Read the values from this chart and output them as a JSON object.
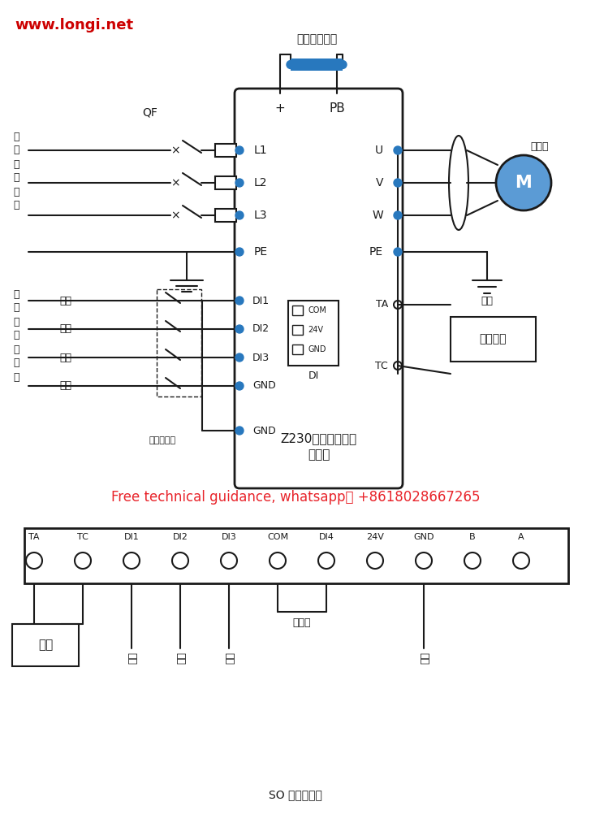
{
  "website": "www.longi.net",
  "website_color": "#cc0000",
  "line_color": "#1a1a1a",
  "blue_dot_color": "#2878be",
  "blue_fill_color": "#2878be",
  "motor_color": "#5b9bd5",
  "bg_color": "#ffffff",
  "red_text_color": "#e8232a",
  "whatsapp_text": "Free technical guidance, whatsapp： +8618028667265",
  "inverter_label1": "Z230电动葪芦专用",
  "inverter_label2": "变频器",
  "external_resistor_label": "外接制动电阶",
  "motor_label": "电动机",
  "ground_label": "接地",
  "qf_label": "QF",
  "plus_label": "+",
  "pb_label": "PB",
  "input_labels": [
    "L1",
    "L2",
    "L3",
    "PE"
  ],
  "output_labels": [
    "U",
    "V",
    "W",
    "PE"
  ],
  "di_labels": [
    "DI1",
    "DI2",
    "DI3",
    "GND"
  ],
  "control_labels": [
    "上升",
    "下降",
    "二速",
    "急停"
  ],
  "ta_label": "TA",
  "tc_label": "TC",
  "brake_label": "抱闸模块",
  "gnd_label": "GND",
  "shielded_wire_label": "端子屏蔽线",
  "multi_func_label": [
    "多",
    "功",
    "能",
    "数",
    "字",
    "输",
    "入"
  ],
  "three_phase_label": [
    "三",
    "相",
    "输",
    "入",
    "电",
    "源"
  ],
  "bottom_terminals": [
    "TA",
    "TC",
    "DI1",
    "DI2",
    "DI3",
    "COM",
    "DI4",
    "24V",
    "GND",
    "B",
    "A"
  ],
  "bottom_brake_label": "抱闸",
  "bottom_forward_label": "正转",
  "bottom_reverse_label": "反转",
  "bottom_speed2_label": "二速",
  "bottom_short_label": "短接线",
  "bottom_estop_label": "急停",
  "bottom_diagram_label": "SO 模式配线图",
  "di_connector_labels": [
    "COM",
    "24V",
    "GND"
  ]
}
